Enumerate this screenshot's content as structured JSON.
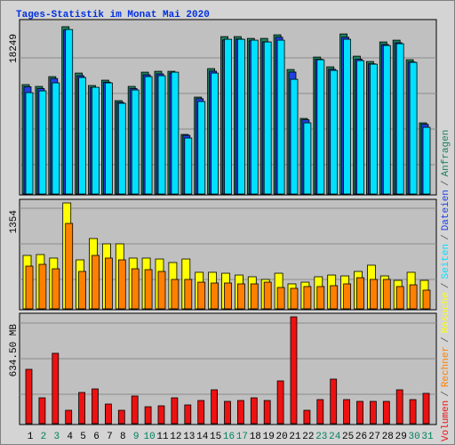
{
  "chart_data": {
    "type": "bar",
    "title": "Tages-Statistik im Monat Mai 2020",
    "categories": [
      "1",
      "2",
      "3",
      "4",
      "5",
      "6",
      "7",
      "8",
      "9",
      "10",
      "11",
      "12",
      "13",
      "14",
      "15",
      "16",
      "17",
      "18",
      "19",
      "20",
      "21",
      "22",
      "23",
      "24",
      "25",
      "26",
      "27",
      "28",
      "29",
      "30",
      "31"
    ],
    "category_colors": [
      "#000000",
      "#00805c",
      "#00805c",
      "#000000",
      "#000000",
      "#000000",
      "#000000",
      "#000000",
      "#00805c",
      "#00805c",
      "#000000",
      "#000000",
      "#000000",
      "#000000",
      "#000000",
      "#00805c",
      "#00805c",
      "#000000",
      "#000000",
      "#000000",
      "#000000",
      "#000000",
      "#00805c",
      "#00805c",
      "#000000",
      "#000000",
      "#000000",
      "#000000",
      "#000000",
      "#00805c",
      "#00805c"
    ],
    "legend_separator": "/",
    "panels": [
      {
        "ylim": [
          0,
          18830
        ],
        "yticks": [
          18249
        ],
        "series": [
          {
            "name": "Anfragen",
            "color": "#1e8060",
            "values": [
              11931,
              11737,
              12804,
              18249,
              13192,
              11834,
              12416,
              10185,
              11737,
              13289,
              13386,
              13386,
              6499,
              10573,
              13677,
              17169,
              17169,
              16975,
              16975,
              17363,
              13580,
              8245,
              14938,
              13871,
              17460,
              15035,
              14453,
              16587,
              16781,
              14647,
              7760
            ]
          },
          {
            "name": "Dateien",
            "color": "#2040e0",
            "values": [
              11700,
              11500,
              12600,
              17900,
              12900,
              11600,
              12200,
              10000,
              11500,
              13000,
              13100,
              13200,
              6400,
              10400,
              13400,
              16800,
              16900,
              16700,
              16600,
              17100,
              13300,
              8100,
              14700,
              13600,
              17100,
              14700,
              14200,
              16300,
              16500,
              14400,
              7600
            ]
          },
          {
            "name": "Seiten",
            "color": "#00e0ff",
            "values": [
              11058,
              11252,
              12125,
              17945,
              12707,
              11640,
              12125,
              9894,
              11349,
              12804,
              12901,
              13289,
              6111,
              10088,
              13192,
              16878,
              16878,
              16781,
              16587,
              16781,
              12513,
              7760,
              14647,
              13483,
              16878,
              14550,
              14162,
              16199,
              16393,
              14356,
              7275
            ]
          }
        ]
      },
      {
        "ylim": [
          0,
          1377
        ],
        "yticks": [
          1354
        ],
        "series": [
          {
            "name": "Besuche",
            "color": "#ffff00",
            "values": [
              683,
              694,
              649,
              1354,
              626,
              899,
              831,
              831,
              649,
              649,
              637,
              592,
              637,
              467,
              467,
              455,
              432,
              410,
              376,
              455,
              319,
              341,
              410,
              432,
              421,
              478,
              558,
              421,
              364,
              467,
              364
            ]
          },
          {
            "name": "Rechner",
            "color": "#ff8000",
            "values": [
              546,
              569,
              512,
              1092,
              478,
              683,
              649,
              626,
              512,
              501,
              478,
              376,
              376,
              341,
              330,
              330,
              319,
              319,
              341,
              273,
              262,
              285,
              285,
              296,
              319,
              398,
              376,
              376,
              285,
              307,
              239
            ]
          }
        ]
      },
      {
        "ylim": [
          0,
          645
        ],
        "yticks": [
          {
            "value": 634.5,
            "label": "634.50 MB"
          }
        ],
        "series": [
          {
            "name": "Volumen",
            "color": "#ee1111",
            "values": [
              322.7,
              153.4,
              417.9,
              79.4,
              185.2,
              206.3,
              116.4,
              79.4,
              164.0,
              100.5,
              105.8,
              153.4,
              111.1,
              137.5,
              201.0,
              132.3,
              137.5,
              153.4,
              137.5,
              253.9,
              634.5,
              79.4,
              142.8,
              264.5,
              142.8,
              132.3,
              132.3,
              132.3,
              201.0,
              142.8,
              179.9
            ]
          }
        ]
      }
    ]
  }
}
